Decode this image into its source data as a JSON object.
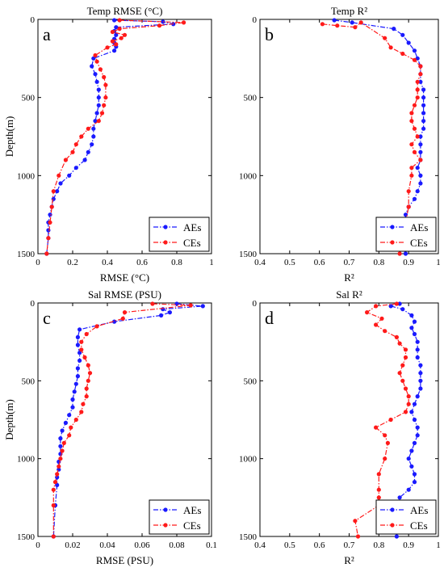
{
  "colors": {
    "AEs": "#1a1aff",
    "CEs": "#ff1a1a",
    "axis": "#000000"
  },
  "chart_data": [
    {
      "type": "line",
      "title": "Temp RMSE (°C)",
      "panel_letter": "a",
      "xlabel": "RMSE (°C)",
      "ylabel": "Depth(m)",
      "xlim": [
        0,
        1
      ],
      "ylim": [
        0,
        1500
      ],
      "y_inverted": true,
      "xticks": [
        "0",
        "0.2",
        "0.4",
        "0.6",
        "0.8",
        "1"
      ],
      "yticks": [
        "0",
        "500",
        "1000",
        "1500"
      ],
      "legend": "bottom-right",
      "series": [
        {
          "name": "AEs",
          "x": [
            0.44,
            0.72,
            0.78,
            0.45,
            0.44,
            0.45,
            0.44,
            0.44,
            0.45,
            0.44,
            0.32,
            0.31,
            0.33,
            0.34,
            0.35,
            0.35,
            0.35,
            0.34,
            0.33,
            0.32,
            0.32,
            0.31,
            0.29,
            0.27,
            0.22,
            0.18,
            0.13,
            0.11,
            0.09,
            0.08,
            0.07,
            0.06,
            0.06,
            0.06,
            0.05
          ],
          "y": [
            5,
            15,
            30,
            50,
            75,
            100,
            125,
            150,
            175,
            200,
            250,
            300,
            350,
            400,
            450,
            500,
            550,
            600,
            650,
            700,
            750,
            800,
            850,
            900,
            950,
            1000,
            1050,
            1100,
            1150,
            1200,
            1250,
            1300,
            1350,
            1400,
            1500
          ]
        },
        {
          "name": "CEs",
          "x": [
            0.47,
            0.84,
            0.7,
            0.47,
            0.43,
            0.5,
            0.48,
            0.43,
            0.45,
            0.4,
            0.33,
            0.34,
            0.36,
            0.38,
            0.39,
            0.39,
            0.38,
            0.37,
            0.35,
            0.29,
            0.25,
            0.22,
            0.2,
            0.16,
            0.12,
            0.09,
            0.08,
            0.07,
            0.06,
            0.05
          ],
          "y": [
            5,
            20,
            40,
            60,
            80,
            100,
            120,
            140,
            160,
            180,
            230,
            270,
            320,
            370,
            420,
            500,
            550,
            600,
            650,
            700,
            750,
            800,
            850,
            900,
            1000,
            1100,
            1200,
            1300,
            1400,
            1500
          ]
        }
      ]
    },
    {
      "type": "line",
      "title": "Temp R²",
      "panel_letter": "b",
      "xlabel": "R²",
      "ylabel": "",
      "xlim": [
        0.4,
        1
      ],
      "ylim": [
        0,
        1500
      ],
      "y_inverted": true,
      "xticks": [
        "0.4",
        "0.5",
        "0.6",
        "0.7",
        "0.8",
        "0.9",
        "1"
      ],
      "yticks": [
        "0",
        "500",
        "1000",
        "1500"
      ],
      "legend": "bottom-right",
      "series": [
        {
          "name": "AEs",
          "x": [
            0.65,
            0.71,
            0.85,
            0.88,
            0.9,
            0.92,
            0.93,
            0.94,
            0.94,
            0.94,
            0.95,
            0.95,
            0.95,
            0.95,
            0.95,
            0.95,
            0.94,
            0.94,
            0.94,
            0.94,
            0.93,
            0.94,
            0.94,
            0.93,
            0.92,
            0.9,
            0.89,
            0.89,
            0.88,
            0.87,
            0.89
          ],
          "y": [
            5,
            20,
            60,
            100,
            150,
            200,
            250,
            300,
            350,
            400,
            450,
            500,
            550,
            600,
            650,
            700,
            750,
            800,
            850,
            900,
            950,
            1000,
            1050,
            1100,
            1150,
            1200,
            1250,
            1300,
            1350,
            1400,
            1500
          ]
        },
        {
          "name": "CEs",
          "x": [
            0.61,
            0.66,
            0.72,
            0.74,
            0.82,
            0.84,
            0.88,
            0.92,
            0.94,
            0.94,
            0.93,
            0.93,
            0.93,
            0.92,
            0.91,
            0.91,
            0.92,
            0.93,
            0.91,
            0.92,
            0.94,
            0.91,
            0.91,
            0.9,
            0.9,
            0.89,
            0.89,
            0.87
          ],
          "y": [
            30,
            40,
            50,
            20,
            120,
            180,
            220,
            260,
            300,
            350,
            400,
            450,
            500,
            550,
            600,
            650,
            700,
            750,
            800,
            850,
            900,
            950,
            1000,
            1100,
            1200,
            1300,
            1400,
            1500
          ]
        }
      ]
    },
    {
      "type": "line",
      "title": "Sal RMSE (PSU)",
      "panel_letter": "c",
      "xlabel": "RMSE (PSU)",
      "ylabel": "Depth(m)",
      "xlim": [
        0,
        0.1
      ],
      "ylim": [
        0,
        1500
      ],
      "y_inverted": true,
      "xticks": [
        "0",
        "0.02",
        "0.04",
        "0.06",
        "0.08",
        "0.1"
      ],
      "yticks": [
        "0",
        "500",
        "1000",
        "1500"
      ],
      "legend": "bottom-right",
      "series": [
        {
          "name": "AEs",
          "x": [
            0.08,
            0.095,
            0.072,
            0.076,
            0.071,
            0.044,
            0.024,
            0.023,
            0.023,
            0.024,
            0.024,
            0.023,
            0.023,
            0.022,
            0.021,
            0.02,
            0.02,
            0.018,
            0.016,
            0.014,
            0.013,
            0.013,
            0.013,
            0.012,
            0.012,
            0.011,
            0.011,
            0.01,
            0.009
          ],
          "y": [
            5,
            20,
            40,
            60,
            80,
            120,
            170,
            220,
            270,
            320,
            370,
            420,
            470,
            520,
            570,
            620,
            670,
            720,
            770,
            820,
            870,
            920,
            970,
            1020,
            1070,
            1120,
            1170,
            1300,
            1500
          ]
        },
        {
          "name": "CEs",
          "x": [
            0.066,
            0.088,
            0.05,
            0.049,
            0.034,
            0.028,
            0.025,
            0.025,
            0.027,
            0.029,
            0.03,
            0.029,
            0.028,
            0.028,
            0.026,
            0.025,
            0.022,
            0.019,
            0.018,
            0.015,
            0.014,
            0.013,
            0.012,
            0.011,
            0.01,
            0.009,
            0.009,
            0.009
          ],
          "y": [
            5,
            15,
            60,
            100,
            150,
            200,
            250,
            300,
            350,
            400,
            450,
            500,
            550,
            600,
            650,
            700,
            750,
            800,
            850,
            900,
            950,
            1000,
            1050,
            1100,
            1150,
            1200,
            1300,
            1500
          ]
        }
      ]
    },
    {
      "type": "line",
      "title": "Sal R²",
      "panel_letter": "d",
      "xlabel": "R²",
      "ylabel": "",
      "xlim": [
        0.4,
        1
      ],
      "ylim": [
        0,
        1500
      ],
      "y_inverted": true,
      "xticks": [
        "0.4",
        "0.5",
        "0.6",
        "0.7",
        "0.8",
        "0.9",
        "1"
      ],
      "yticks": [
        "0",
        "500",
        "1000",
        "1500"
      ],
      "legend": "bottom-right",
      "series": [
        {
          "name": "AEs",
          "x": [
            0.87,
            0.84,
            0.88,
            0.91,
            0.92,
            0.91,
            0.92,
            0.93,
            0.93,
            0.93,
            0.94,
            0.94,
            0.94,
            0.94,
            0.93,
            0.92,
            0.91,
            0.92,
            0.93,
            0.93,
            0.92,
            0.91,
            0.9,
            0.91,
            0.92,
            0.92,
            0.9,
            0.87,
            0.85,
            0.86
          ],
          "y": [
            5,
            20,
            40,
            80,
            120,
            160,
            200,
            250,
            300,
            350,
            400,
            450,
            500,
            550,
            600,
            650,
            700,
            750,
            800,
            850,
            900,
            950,
            1000,
            1050,
            1100,
            1150,
            1200,
            1250,
            1300,
            1500
          ]
        },
        {
          "name": "CEs",
          "x": [
            0.86,
            0.79,
            0.76,
            0.81,
            0.79,
            0.82,
            0.86,
            0.87,
            0.89,
            0.89,
            0.88,
            0.87,
            0.88,
            0.89,
            0.9,
            0.9,
            0.89,
            0.84,
            0.79,
            0.82,
            0.83,
            0.82,
            0.8,
            0.8,
            0.8,
            0.8,
            0.72,
            0.73
          ],
          "y": [
            5,
            20,
            60,
            100,
            140,
            180,
            220,
            260,
            300,
            350,
            400,
            450,
            500,
            550,
            600,
            650,
            700,
            750,
            800,
            850,
            900,
            1000,
            1100,
            1200,
            1250,
            1300,
            1400,
            1500
          ]
        }
      ]
    }
  ]
}
